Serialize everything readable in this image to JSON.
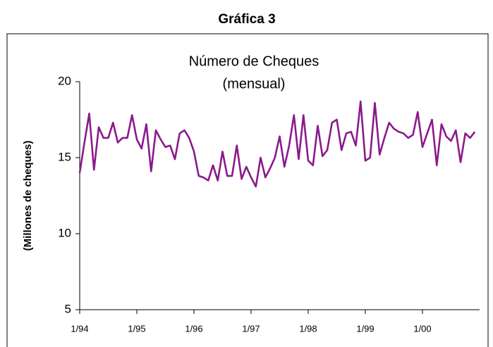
{
  "chart_data": {
    "type": "line",
    "title": "Gráfica 3",
    "subtitle": [
      "Número de Cheques",
      "(mensual)"
    ],
    "y_label": "(Millones de cheques)",
    "categories": [
      "1/94",
      null,
      null,
      null,
      null,
      null,
      null,
      null,
      null,
      null,
      null,
      null,
      "1/95",
      null,
      null,
      null,
      null,
      null,
      null,
      null,
      null,
      null,
      null,
      null,
      "1/96",
      null,
      null,
      null,
      null,
      null,
      null,
      null,
      null,
      null,
      null,
      null,
      "1/97",
      null,
      null,
      null,
      null,
      null,
      null,
      null,
      null,
      null,
      null,
      null,
      "1/98",
      null,
      null,
      null,
      null,
      null,
      null,
      null,
      null,
      null,
      null,
      null,
      "1/99",
      null,
      null,
      null,
      null,
      null,
      null,
      null,
      null,
      null,
      null,
      null,
      "1/00",
      null,
      null,
      null,
      null,
      null,
      null,
      null,
      null,
      null,
      null,
      null
    ],
    "series": [
      {
        "color": "#8b1a8b",
        "values": [
          14.0,
          16.0,
          17.9,
          14.2,
          17.0,
          16.3,
          16.3,
          17.3,
          16.0,
          16.3,
          16.3,
          17.8,
          16.2,
          15.6,
          17.2,
          14.1,
          16.8,
          16.2,
          15.7,
          15.8,
          14.9,
          16.6,
          16.8,
          16.3,
          15.4,
          13.8,
          13.7,
          13.5,
          14.5,
          13.5,
          15.4,
          13.8,
          13.8,
          15.8,
          13.6,
          14.4,
          13.7,
          13.1,
          15.0,
          13.7,
          14.3,
          15.0,
          16.4,
          14.4,
          15.8,
          17.8,
          14.9,
          17.8,
          14.8,
          14.5,
          17.1,
          15.1,
          15.5,
          17.3,
          17.5,
          15.5,
          16.6,
          16.7,
          15.8,
          18.7,
          14.8,
          15.0,
          18.6,
          15.2,
          16.3,
          17.3,
          16.9,
          16.7,
          16.6,
          16.3,
          16.5,
          18.0,
          15.7,
          16.6,
          17.5,
          14.5,
          17.2,
          16.4,
          16.1,
          16.8,
          14.7,
          16.6,
          16.3,
          16.7
        ]
      }
    ],
    "ylim": [
      5,
      20
    ],
    "yticks": [
      5,
      10,
      15,
      20
    ]
  }
}
